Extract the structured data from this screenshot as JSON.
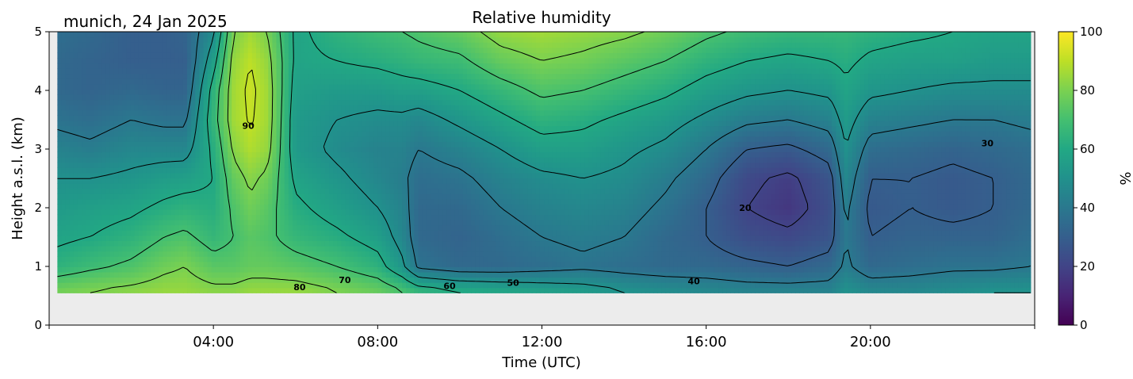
{
  "chart_data": {
    "type": "heatmap",
    "title": "Relative humidity",
    "location_label": "munich, 24 Jan 2025",
    "xlabel": "Time (UTC)",
    "ylabel": "Height a.s.l. (km)",
    "x_range_hours": [
      0,
      24
    ],
    "x_ticks": [
      {
        "hour": 4,
        "label": "04:00"
      },
      {
        "hour": 8,
        "label": "08:00"
      },
      {
        "hour": 12,
        "label": "12:00"
      },
      {
        "hour": 16,
        "label": "16:00"
      },
      {
        "hour": 20,
        "label": "20:00"
      }
    ],
    "y_range_km": [
      0,
      5
    ],
    "y_ticks": [
      "0",
      "1",
      "2",
      "3",
      "4",
      "5"
    ],
    "data_bottom_km": 0.55,
    "data_start_hour": 0.2,
    "data_end_hour": 23.9,
    "colorbar": {
      "label": "%",
      "range": [
        0,
        100
      ],
      "ticks": [
        "0",
        "20",
        "40",
        "60",
        "80",
        "100"
      ],
      "colormap": "viridis"
    },
    "contour_levels": [
      20,
      30,
      40,
      50,
      60,
      70,
      80,
      90
    ],
    "contour_labels": [
      {
        "text": "90",
        "hour": 4.85,
        "km": 3.4
      },
      {
        "text": "80",
        "hour": 6.1,
        "km": 0.65
      },
      {
        "text": "70",
        "hour": 7.2,
        "km": 0.77
      },
      {
        "text": "60",
        "hour": 9.75,
        "km": 0.67
      },
      {
        "text": "50",
        "hour": 11.3,
        "km": 0.72
      },
      {
        "text": "40",
        "hour": 15.7,
        "km": 0.75
      },
      {
        "text": "20",
        "hour": 16.95,
        "km": 2.0
      },
      {
        "text": "30",
        "hour": 22.85,
        "km": 3.1
      }
    ],
    "humidity_profile": {
      "hours": [
        0.2,
        1,
        2,
        2.8,
        3.3,
        4,
        4.5,
        4.9,
        5.3,
        6,
        7,
        8,
        8.6,
        9,
        10,
        11,
        12,
        13,
        14,
        15,
        16,
        17,
        18,
        19,
        19.4,
        20,
        21,
        22,
        23,
        23.9
      ],
      "levels_km": [
        0.6,
        1,
        1.5,
        2,
        2.5,
        3,
        3.5,
        4,
        4.5,
        5
      ],
      "values_pct": [
        [
          78,
          64,
          58,
          54,
          50,
          44,
          38,
          34,
          34,
          36
        ],
        [
          80,
          68,
          60,
          56,
          50,
          42,
          36,
          32,
          32,
          34
        ],
        [
          82,
          72,
          64,
          58,
          52,
          46,
          40,
          34,
          30,
          30
        ],
        [
          84,
          78,
          70,
          62,
          55,
          46,
          38,
          32,
          30,
          30
        ],
        [
          84,
          80,
          72,
          64,
          56,
          46,
          38,
          32,
          30,
          32
        ],
        [
          82,
          74,
          66,
          62,
          60,
          62,
          66,
          64,
          56,
          48
        ],
        [
          82,
          74,
          70,
          72,
          76,
          82,
          86,
          86,
          84,
          80
        ],
        [
          84,
          76,
          74,
          78,
          82,
          88,
          91,
          92,
          90,
          86
        ],
        [
          84,
          76,
          72,
          74,
          78,
          84,
          86,
          86,
          84,
          80
        ],
        [
          84,
          74,
          66,
          62,
          58,
          54,
          54,
          56,
          58,
          58
        ],
        [
          80,
          70,
          62,
          56,
          52,
          48,
          50,
          54,
          60,
          64
        ],
        [
          76,
          64,
          56,
          50,
          46,
          44,
          48,
          54,
          62,
          68
        ],
        [
          70,
          52,
          46,
          44,
          42,
          44,
          48,
          56,
          64,
          70
        ],
        [
          64,
          38,
          34,
          34,
          36,
          40,
          46,
          56,
          66,
          72
        ],
        [
          60,
          34,
          32,
          34,
          38,
          44,
          52,
          60,
          68,
          76
        ],
        [
          58,
          34,
          36,
          40,
          44,
          50,
          58,
          66,
          76,
          84
        ],
        [
          56,
          36,
          40,
          44,
          48,
          56,
          64,
          72,
          80,
          86
        ],
        [
          54,
          38,
          42,
          46,
          50,
          56,
          62,
          70,
          78,
          84
        ],
        [
          50,
          36,
          40,
          44,
          48,
          52,
          58,
          66,
          74,
          82
        ],
        [
          48,
          34,
          34,
          38,
          42,
          48,
          54,
          62,
          70,
          78
        ],
        [
          46,
          34,
          30,
          30,
          34,
          40,
          48,
          56,
          64,
          72
        ],
        [
          44,
          32,
          24,
          20,
          22,
          30,
          42,
          52,
          60,
          68
        ],
        [
          44,
          30,
          22,
          16,
          18,
          28,
          40,
          50,
          58,
          66
        ],
        [
          44,
          34,
          26,
          24,
          26,
          34,
          44,
          52,
          60,
          66
        ],
        [
          50,
          42,
          40,
          42,
          46,
          50,
          54,
          58,
          62,
          66
        ],
        [
          46,
          34,
          30,
          28,
          30,
          36,
          44,
          52,
          58,
          64
        ],
        [
          46,
          36,
          32,
          30,
          30,
          34,
          42,
          50,
          56,
          62
        ],
        [
          48,
          38,
          32,
          28,
          28,
          32,
          40,
          48,
          56,
          60
        ],
        [
          50,
          38,
          32,
          30,
          30,
          34,
          40,
          48,
          54,
          58
        ],
        [
          50,
          40,
          36,
          34,
          34,
          36,
          42,
          48,
          54,
          58
        ]
      ]
    },
    "colors": {
      "missing_data": "#ececec",
      "contour_line": "#000000"
    }
  }
}
